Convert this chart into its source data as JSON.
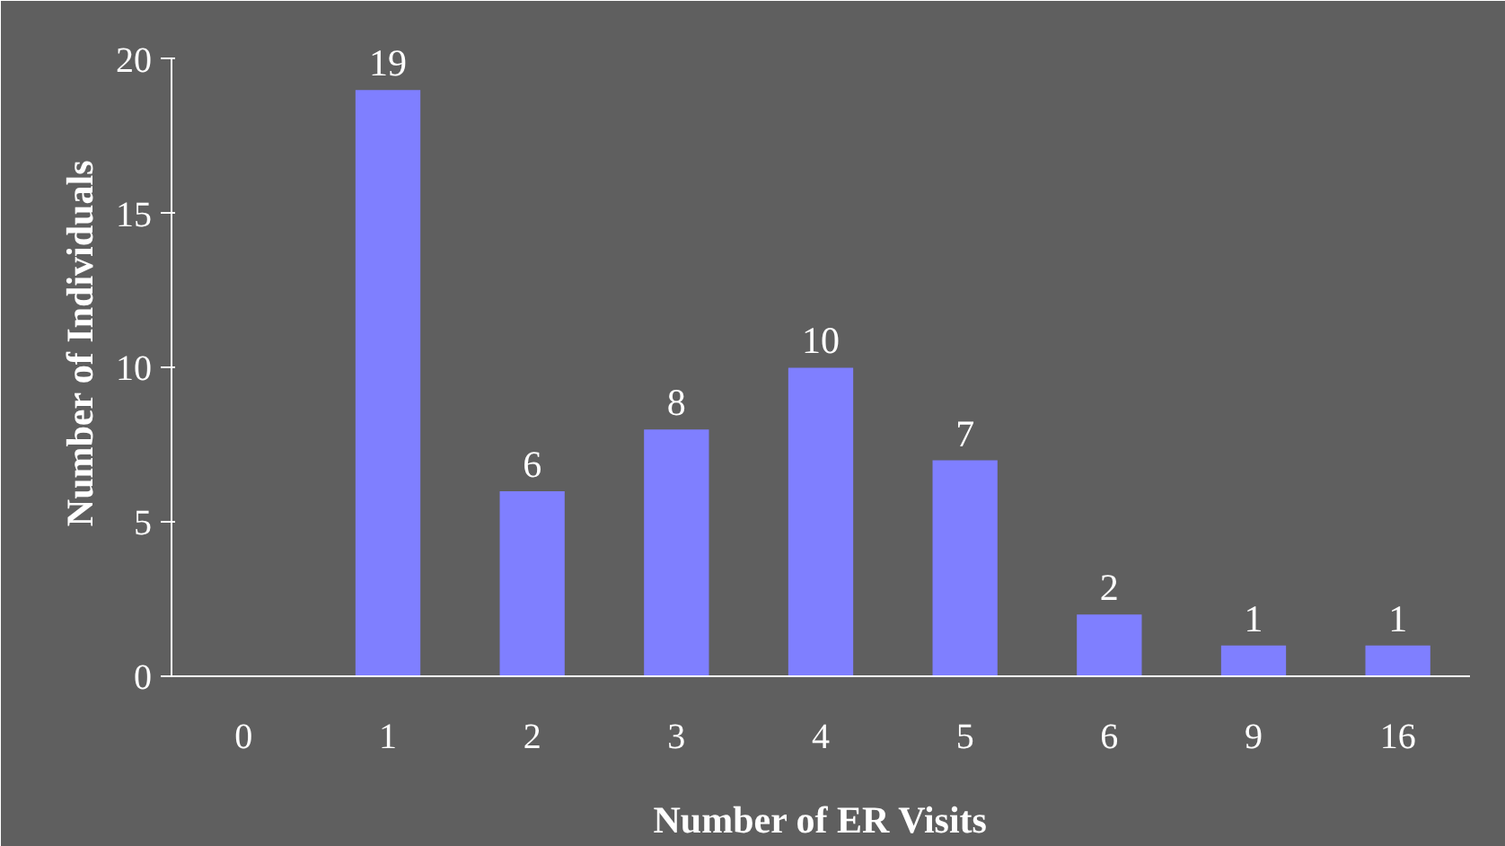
{
  "chart_data": {
    "type": "bar",
    "xlabel": "Number of ER Visits",
    "ylabel": "Number of Individuals",
    "categories": [
      "0",
      "1",
      "2",
      "3",
      "4",
      "5",
      "6",
      "9",
      "16"
    ],
    "values": [
      0,
      19,
      6,
      8,
      10,
      7,
      2,
      1,
      1
    ],
    "value_labels": [
      null,
      "19",
      "6",
      "8",
      "10",
      "7",
      "2",
      "1",
      "1"
    ],
    "color": "#7f7fff",
    "ylim": [
      0,
      20
    ],
    "yticks": [
      0,
      5,
      10,
      15,
      20
    ],
    "grid": false
  }
}
